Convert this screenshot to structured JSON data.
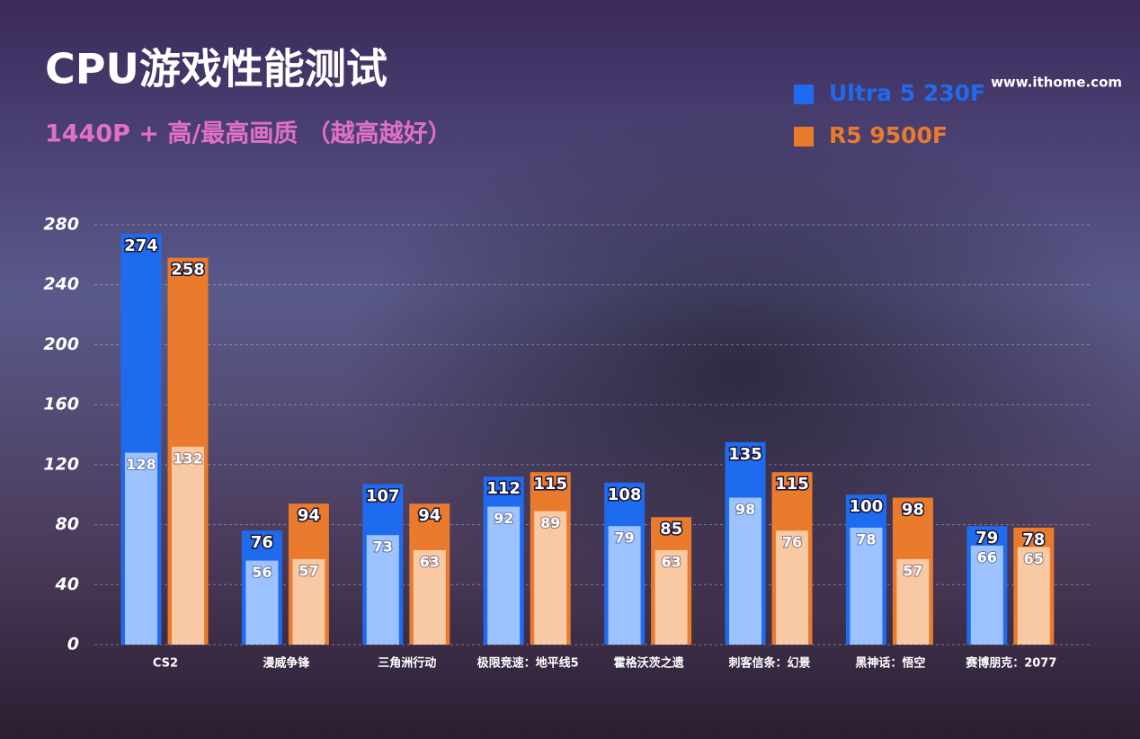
{
  "chart_data": {
    "type": "bar",
    "title": "CPU游戏性能测试",
    "subtitle": "1440P + 高/最高画质 （越高越好）",
    "watermark": "www.ithome.com",
    "categories": [
      "CS2",
      "漫威争锋",
      "三角洲行动",
      "极限竞速：地平线5",
      "霍格沃茨之遗",
      "刺客信条：幻景",
      "黑神话：悟空",
      "赛博朋克：2077"
    ],
    "series": [
      {
        "name": "Ultra 5 230F",
        "color": "#1f6bf0",
        "low_color": "#9cc3ff",
        "values": [
          274,
          76,
          107,
          112,
          108,
          135,
          100,
          79
        ],
        "low_values": [
          128,
          56,
          73,
          92,
          79,
          98,
          78,
          66
        ]
      },
      {
        "name": "R5 9500F",
        "color": "#ea7a2c",
        "low_color": "#f8c9a2",
        "values": [
          258,
          94,
          94,
          115,
          85,
          115,
          98,
          78
        ],
        "low_values": [
          132,
          57,
          63,
          89,
          63,
          76,
          57,
          65
        ]
      }
    ],
    "ylim": [
      0,
      280
    ],
    "yticks": [
      0,
      40,
      80,
      120,
      160,
      200,
      240,
      280
    ],
    "grid": true
  }
}
